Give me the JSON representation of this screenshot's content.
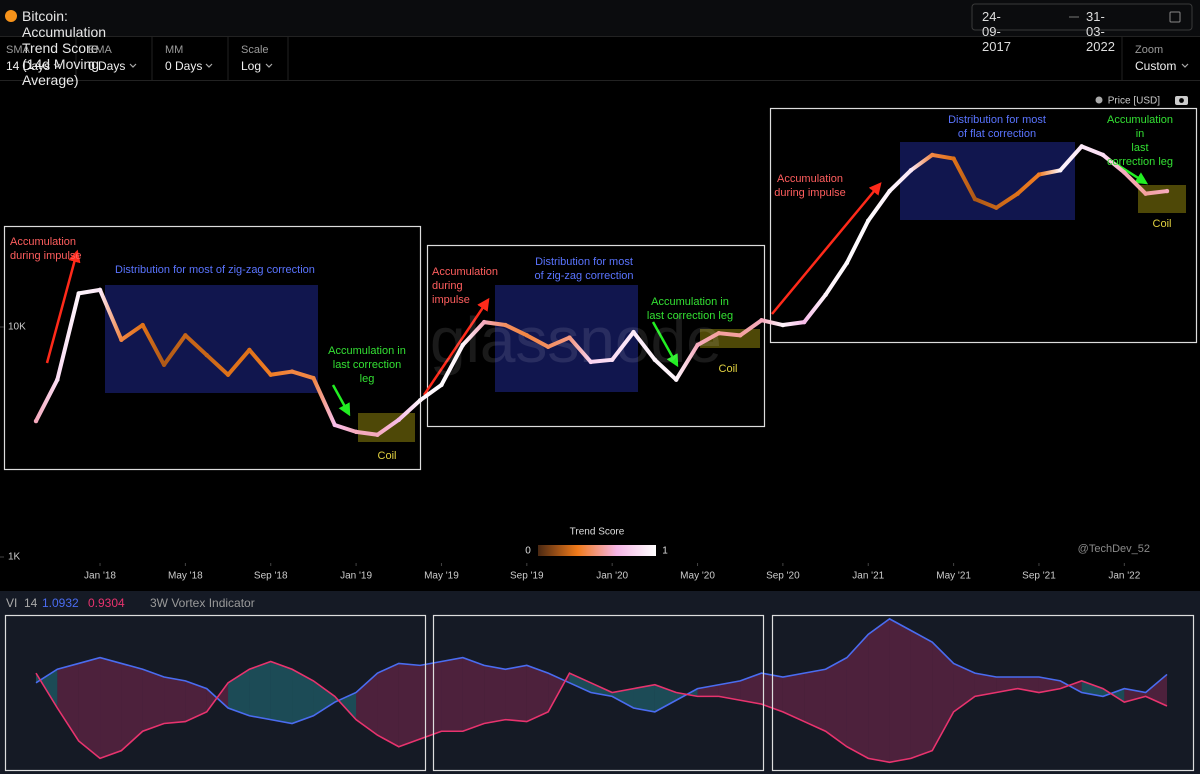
{
  "header": {
    "title": "Bitcoin: Accumulation Trend Score (14d Moving Average)",
    "date_from": "24-09-2017",
    "date_to": "31-03-2022"
  },
  "controls": [
    {
      "label": "SMA",
      "value": "14 Days"
    },
    {
      "label": "EMA",
      "value": "0 Days"
    },
    {
      "label": "MM",
      "value": "0 Days"
    },
    {
      "label": "Scale",
      "value": "Log"
    }
  ],
  "zoom": {
    "label": "Zoom",
    "value": "Custom"
  },
  "chart_data": [
    {
      "type": "line",
      "x": [
        "2017-10",
        "2017-11",
        "2017-12",
        "2018-01",
        "2018-02",
        "2018-03",
        "2018-04",
        "2018-05",
        "2018-06",
        "2018-07",
        "2018-08",
        "2018-09",
        "2018-10",
        "2018-11",
        "2018-12",
        "2019-01",
        "2019-02",
        "2019-03",
        "2019-04",
        "2019-05",
        "2019-06",
        "2019-07",
        "2019-08",
        "2019-09",
        "2019-10",
        "2019-11",
        "2019-12",
        "2020-01",
        "2020-02",
        "2020-03",
        "2020-04",
        "2020-05",
        "2020-06",
        "2020-07",
        "2020-08",
        "2020-09",
        "2020-10",
        "2020-11",
        "2020-12",
        "2021-01",
        "2021-02",
        "2021-03",
        "2021-04",
        "2021-05",
        "2021-06",
        "2021-07",
        "2021-08",
        "2021-09",
        "2021-10",
        "2021-11",
        "2021-12",
        "2022-01",
        "2022-02",
        "2022-03"
      ],
      "xlim": [
        "2017-10",
        "2022-03"
      ],
      "xticks": [
        {
          "value": "2018-01",
          "label": "Jan '18"
        },
        {
          "value": "2018-05",
          "label": "May '18"
        },
        {
          "value": "2018-09",
          "label": "Sep '18"
        },
        {
          "value": "2019-01",
          "label": "Jan '19"
        },
        {
          "value": "2019-05",
          "label": "May '19"
        },
        {
          "value": "2019-09",
          "label": "Sep '19"
        },
        {
          "value": "2020-01",
          "label": "Jan '20"
        },
        {
          "value": "2020-05",
          "label": "May '20"
        },
        {
          "value": "2020-09",
          "label": "Sep '20"
        },
        {
          "value": "2021-01",
          "label": "Jan '21"
        },
        {
          "value": "2021-05",
          "label": "May '21"
        },
        {
          "value": "2021-09",
          "label": "Sep '21"
        },
        {
          "value": "2022-01",
          "label": "Jan '22"
        }
      ],
      "ylim": [
        1000,
        100000
      ],
      "yticks": [
        {
          "value": 1000,
          "label": "1K"
        },
        {
          "value": 10000,
          "label": "10K"
        }
      ],
      "log_scale": true,
      "grid": false,
      "series": [
        {
          "name": "Price [USD]",
          "values": [
            3900,
            5900,
            14000,
            14500,
            8800,
            10200,
            6850,
            9200,
            7550,
            6200,
            7950,
            6200,
            6400,
            6000,
            3750,
            3500,
            3400,
            3950,
            4800,
            5600,
            8350,
            10500,
            10200,
            9200,
            8200,
            9000,
            7050,
            7200,
            9500,
            7200,
            5900,
            8350,
            9400,
            9200,
            10700,
            10200,
            10500,
            13800,
            19000,
            29000,
            39000,
            48000,
            56000,
            54000,
            36000,
            33000,
            38000,
            46000,
            48000,
            61000,
            56000,
            47000,
            38000,
            39000
          ],
          "scores": [
            0.6,
            0.85,
            0.95,
            0.9,
            0.4,
            0.3,
            0.2,
            0.25,
            0.25,
            0.3,
            0.3,
            0.35,
            0.4,
            0.4,
            0.7,
            0.6,
            0.6,
            0.7,
            0.95,
            0.98,
            0.95,
            0.6,
            0.45,
            0.4,
            0.45,
            0.5,
            0.8,
            0.85,
            0.9,
            0.95,
            0.95,
            0.6,
            0.55,
            0.55,
            0.6,
            0.95,
            0.7,
            0.95,
            0.98,
            0.98,
            0.95,
            0.9,
            0.4,
            0.3,
            0.2,
            0.25,
            0.3,
            0.35,
            0.95,
            0.9,
            0.85,
            0.6,
            0.55,
            0.6
          ]
        }
      ],
      "colorbar": {
        "title": "Trend Score",
        "range": [
          0,
          1
        ],
        "colors": [
          "#4a2812",
          "#f07a1a",
          "#f6b6e6",
          "#ffffff"
        ]
      },
      "annotations": [
        {
          "text": "Accumulation\nduring impulse",
          "color": "#ff5e5e"
        },
        {
          "text": "Distribution for most of zig-zag correction",
          "color": "#5a74ff"
        },
        {
          "text": "Accumulation in\nlast correction\nleg",
          "color": "#33e033"
        },
        {
          "text": "Coil",
          "color": "#e0d040"
        },
        {
          "text": "Accumulation\nduring\nimpulse",
          "color": "#ff5e5e"
        },
        {
          "text": "Distribution for most\nof zig-zag correction",
          "color": "#5a74ff"
        },
        {
          "text": "Accumulation in\nlast correction leg",
          "color": "#33e033"
        },
        {
          "text": "Coil",
          "color": "#e0d040"
        },
        {
          "text": "Accumulation\nduring impulse",
          "color": "#ff5e5e"
        },
        {
          "text": "Distribution for most\nof flat correction",
          "color": "#5a74ff"
        },
        {
          "text": "Accumulation in\nlast correction leg",
          "color": "#33e033"
        },
        {
          "text": "Coil",
          "color": "#e0d040"
        }
      ],
      "watermark": "glassnode",
      "credit": "@TechDev_52"
    },
    {
      "type": "line",
      "title": "3W Vortex Indicator",
      "label": "VI",
      "period": 14,
      "x": [
        "2017-10",
        "2017-11",
        "2017-12",
        "2018-01",
        "2018-02",
        "2018-03",
        "2018-04",
        "2018-05",
        "2018-06",
        "2018-07",
        "2018-08",
        "2018-09",
        "2018-10",
        "2018-11",
        "2018-12",
        "2019-01",
        "2019-02",
        "2019-03",
        "2019-04",
        "2019-05",
        "2019-06",
        "2019-07",
        "2019-08",
        "2019-09",
        "2019-10",
        "2019-11",
        "2019-12",
        "2020-01",
        "2020-02",
        "2020-03",
        "2020-04",
        "2020-05",
        "2020-06",
        "2020-07",
        "2020-08",
        "2020-09",
        "2020-10",
        "2020-11",
        "2020-12",
        "2021-01",
        "2021-02",
        "2021-03",
        "2021-04",
        "2021-05",
        "2021-06",
        "2021-07",
        "2021-08",
        "2021-09",
        "2021-10",
        "2021-11",
        "2021-12",
        "2022-01",
        "2022-02",
        "2022-03"
      ],
      "xlim": [
        "2017-10",
        "2022-03"
      ],
      "ylim": [
        0.6,
        1.4
      ],
      "area_colors": [
        "rgba(190,50,110,0.33)",
        "rgba(40,150,160,0.4)"
      ],
      "series": [
        {
          "color": "#4a6cf0",
          "values": [
            1.05,
            1.12,
            1.15,
            1.18,
            1.15,
            1.12,
            1.08,
            1.06,
            1.02,
            0.92,
            0.88,
            0.86,
            0.84,
            0.88,
            0.95,
            1.0,
            1.1,
            1.15,
            1.14,
            1.16,
            1.18,
            1.14,
            1.12,
            1.14,
            1.1,
            1.05,
            1.0,
            0.98,
            0.92,
            0.9,
            0.96,
            1.02,
            1.04,
            1.06,
            1.1,
            1.08,
            1.1,
            1.12,
            1.18,
            1.3,
            1.38,
            1.32,
            1.26,
            1.15,
            1.1,
            1.08,
            1.08,
            1.08,
            1.06,
            1.0,
            0.98,
            1.02,
            1.0,
            1.0932
          ]
        },
        {
          "color": "#e8336e",
          "values": [
            1.1,
            0.92,
            0.75,
            0.66,
            0.7,
            0.8,
            0.84,
            0.85,
            0.9,
            1.05,
            1.12,
            1.16,
            1.12,
            1.06,
            0.98,
            0.86,
            0.78,
            0.72,
            0.76,
            0.8,
            0.8,
            0.84,
            0.86,
            0.85,
            0.9,
            1.1,
            1.05,
            1.0,
            1.02,
            1.04,
            1.0,
            0.98,
            0.98,
            0.96,
            0.94,
            0.9,
            0.85,
            0.8,
            0.72,
            0.66,
            0.64,
            0.66,
            0.7,
            0.9,
            0.98,
            1.0,
            1.02,
            1.0,
            1.02,
            1.06,
            1.02,
            0.95,
            0.98,
            0.9304
          ]
        }
      ]
    }
  ]
}
